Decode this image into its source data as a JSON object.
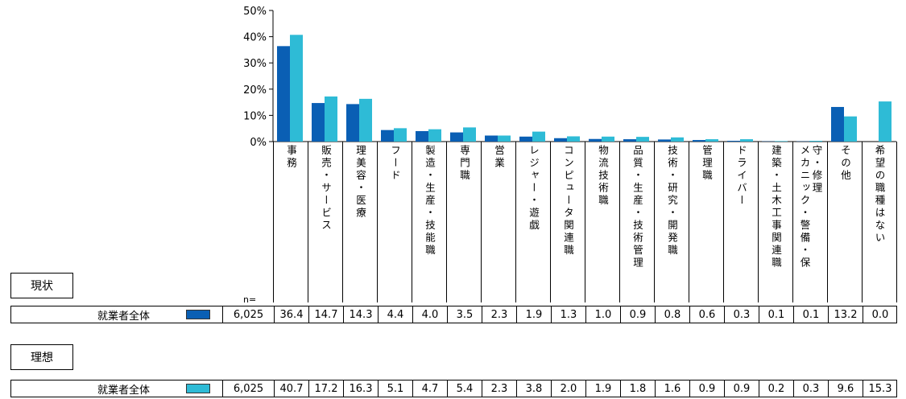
{
  "chart_data": {
    "type": "bar",
    "categories": [
      "事務",
      "販売・サービス",
      "理美容・医療",
      "フード",
      "製造・生産・技能職",
      "専門職",
      "営業",
      "レジャー・遊戯",
      "コンピュータ関連職",
      "物流技術職",
      "品質・生産・技術管理",
      "技術・研究・開発職",
      "管理職",
      "ドライバー",
      "建築・土木工事関連職",
      "メカニック・警備・保守・修理",
      "その他",
      "希望の職種はない"
    ],
    "category_columns": [
      [
        "事務"
      ],
      [
        "販売・サービス"
      ],
      [
        "理美容・医療"
      ],
      [
        "フード"
      ],
      [
        "製造・生産・技能職"
      ],
      [
        "専門職"
      ],
      [
        "営業"
      ],
      [
        "レジャー・遊戯"
      ],
      [
        "コンピュータ関連職"
      ],
      [
        "物流技術職"
      ],
      [
        "品質・生産・技術管理"
      ],
      [
        "技術・研究・開発職"
      ],
      [
        "管理職"
      ],
      [
        "ドライバー"
      ],
      [
        "建築・土木工事関連職"
      ],
      [
        "メカニック・警備・保",
        "守・修理"
      ],
      [
        "その他"
      ],
      [
        "希望の職種はない"
      ]
    ],
    "series": [
      {
        "name": "現状",
        "row_label": "就業者全体",
        "n": "6,025",
        "color": "#0a5fb4",
        "values": [
          36.4,
          14.7,
          14.3,
          4.4,
          4.0,
          3.5,
          2.3,
          1.9,
          1.3,
          1.0,
          0.9,
          0.8,
          0.6,
          0.3,
          0.1,
          0.1,
          13.2,
          0.0
        ]
      },
      {
        "name": "理想",
        "row_label": "就業者全体",
        "n": "6,025",
        "color": "#2ebbd6",
        "values": [
          40.7,
          17.2,
          16.3,
          5.1,
          4.7,
          5.4,
          2.3,
          3.8,
          2.0,
          1.9,
          1.8,
          1.6,
          0.9,
          0.9,
          0.2,
          0.3,
          9.6,
          15.3
        ]
      }
    ],
    "y_ticks": [
      "0%",
      "10%",
      "20%",
      "30%",
      "40%",
      "50%"
    ],
    "ylim": [
      0,
      50
    ],
    "n_label": "n=",
    "grid": false
  }
}
